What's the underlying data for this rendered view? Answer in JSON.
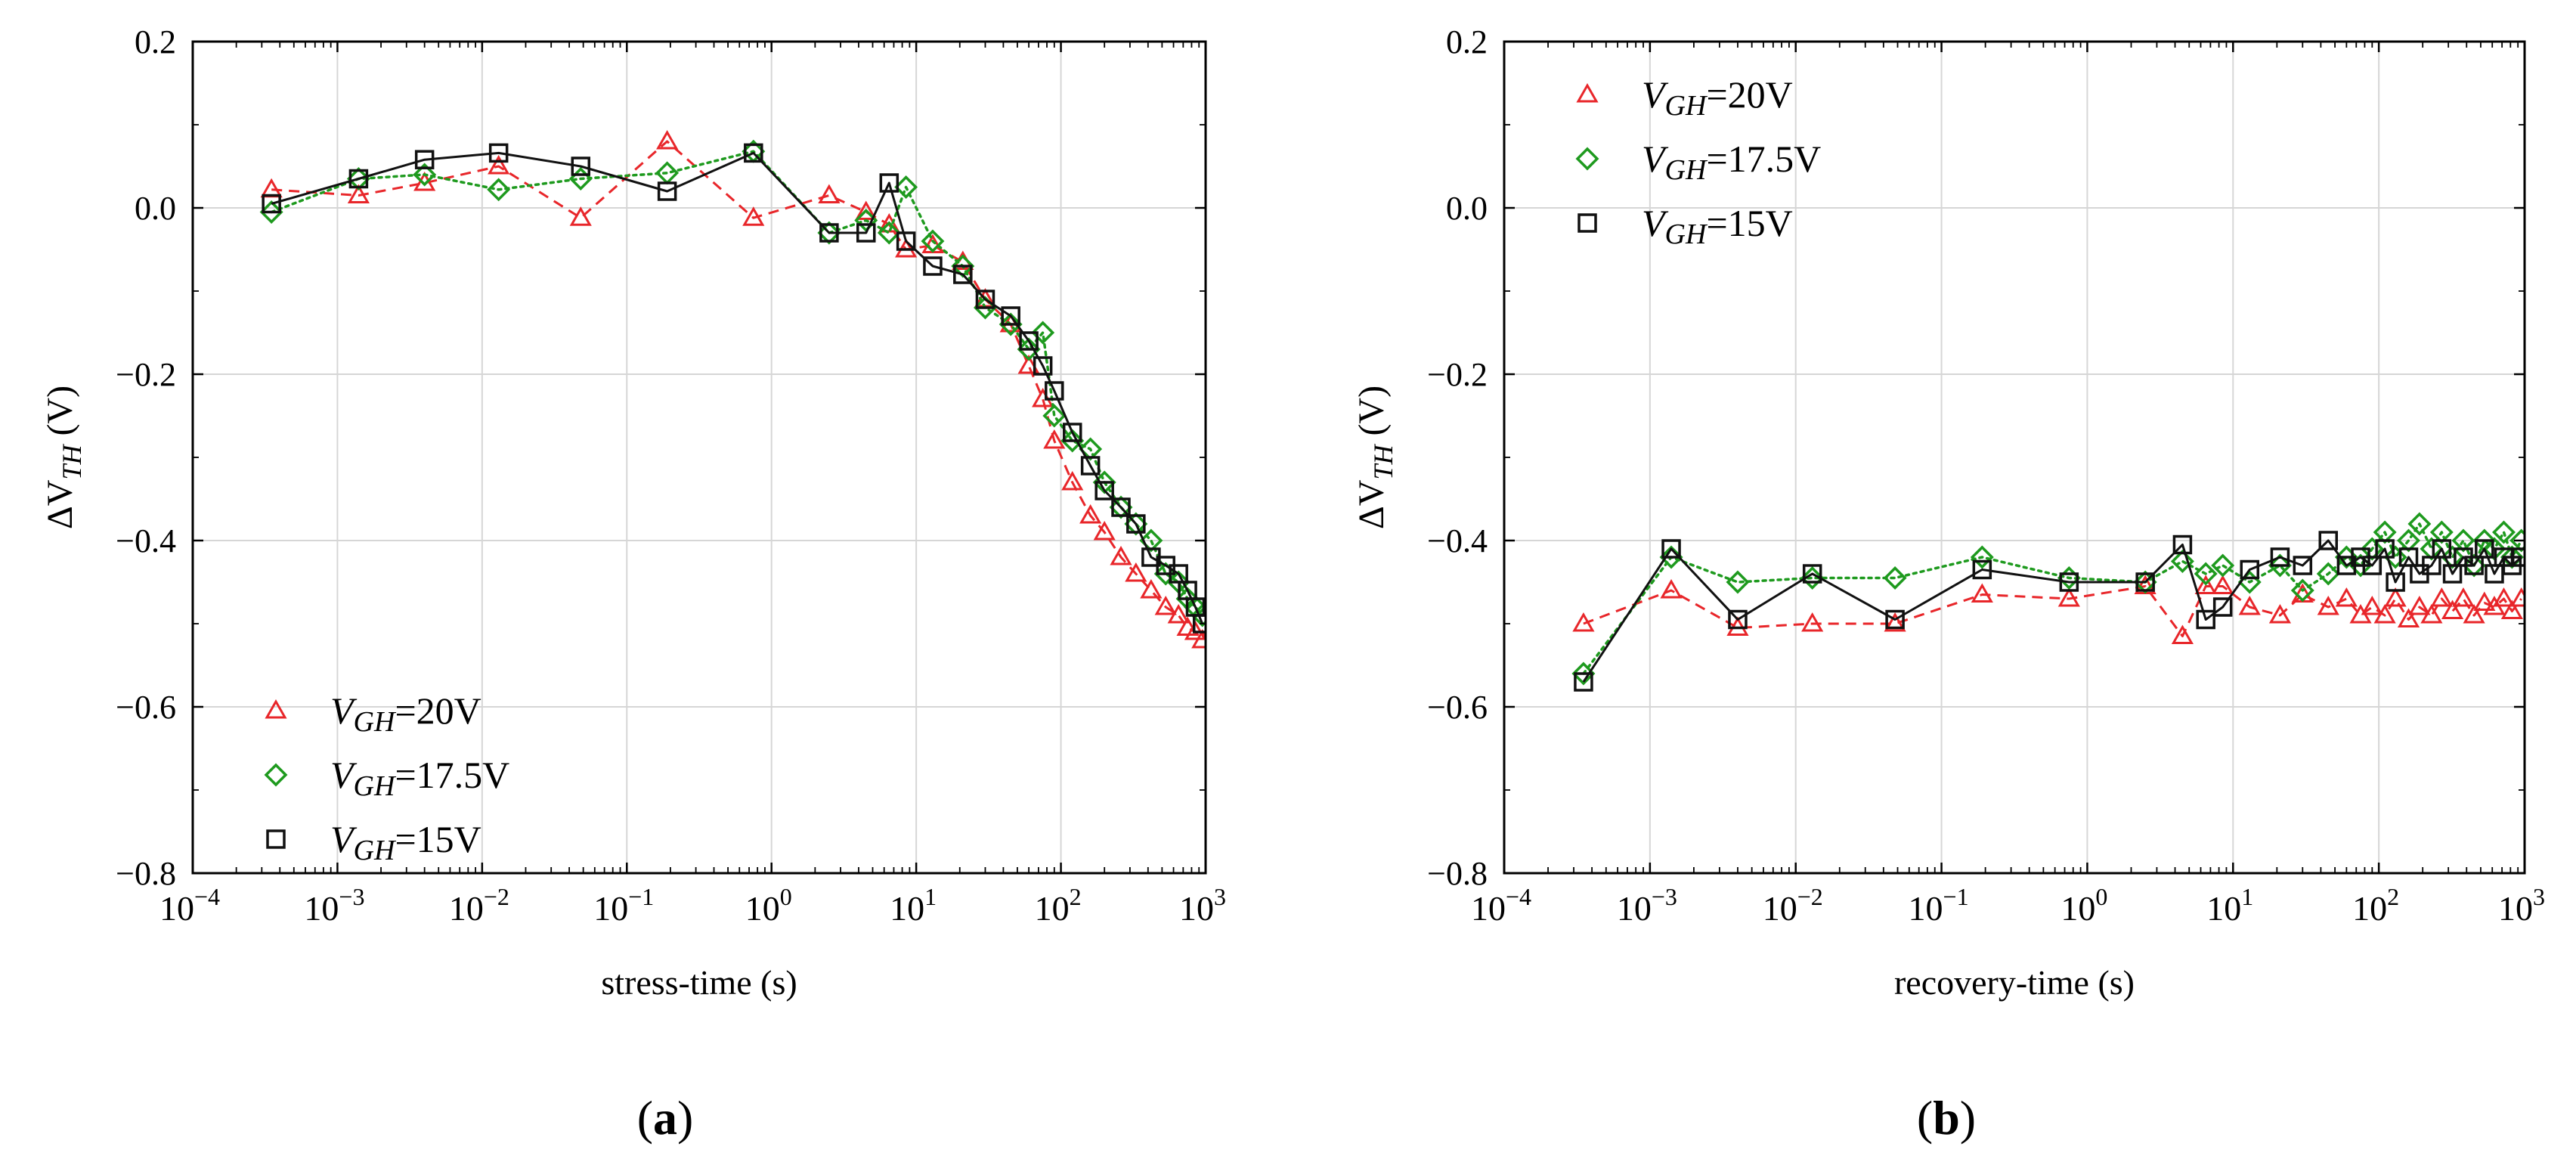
{
  "figure": {
    "panels": [
      {
        "label": "(a)"
      },
      {
        "label": "(b)"
      }
    ]
  },
  "chart_data": [
    {
      "type": "scatter",
      "panel_label": "(a)",
      "xlabel": "stress-time (s)",
      "ylabel": "ΔV_TH (V)",
      "ylabel_parts": {
        "prefix": "ΔV",
        "subscript": "TH",
        "suffix": " (V)"
      },
      "x_scale": "log",
      "xlim": [
        0.0001,
        1000
      ],
      "ylim": [
        -0.8,
        0.2
      ],
      "x_ticks": [
        {
          "value": 0.0001,
          "base": "10",
          "exp": "−4"
        },
        {
          "value": 0.001,
          "base": "10",
          "exp": "−3"
        },
        {
          "value": 0.01,
          "base": "10",
          "exp": "−2"
        },
        {
          "value": 0.1,
          "base": "10",
          "exp": "−1"
        },
        {
          "value": 1,
          "base": "10",
          "exp": "0"
        },
        {
          "value": 10,
          "base": "10",
          "exp": "1"
        },
        {
          "value": 100,
          "base": "10",
          "exp": "2"
        },
        {
          "value": 1000,
          "base": "10",
          "exp": "3"
        }
      ],
      "y_ticks": [
        {
          "value": 0.2,
          "label": "0.2"
        },
        {
          "value": 0.0,
          "label": "0.0"
        },
        {
          "value": -0.2,
          "label": "−0.2"
        },
        {
          "value": -0.4,
          "label": "−0.4"
        },
        {
          "value": -0.6,
          "label": "−0.6"
        },
        {
          "value": -0.8,
          "label": "−0.8"
        }
      ],
      "grid": true,
      "legend_position": "bottom-left",
      "series": [
        {
          "name": "V_GH=20V",
          "name_main": "V",
          "name_sub": "GH",
          "name_rest": "=20V",
          "color": "#e8262a",
          "marker": "triangle",
          "line": "dashed",
          "x": [
            0.00035,
            0.0014,
            0.004,
            0.013,
            0.048,
            0.19,
            0.75,
            2.5,
            4.5,
            6.5,
            8.5,
            13,
            21,
            30,
            45,
            60,
            75,
            90,
            120,
            160,
            200,
            260,
            330,
            420,
            530,
            650,
            750,
            850,
            950
          ],
          "y": [
            0.022,
            0.015,
            0.03,
            0.05,
            -0.012,
            0.08,
            -0.012,
            0.015,
            -0.005,
            -0.02,
            -0.05,
            -0.045,
            -0.065,
            -0.11,
            -0.14,
            -0.19,
            -0.23,
            -0.28,
            -0.33,
            -0.37,
            -0.39,
            -0.42,
            -0.44,
            -0.46,
            -0.48,
            -0.49,
            -0.505,
            -0.51,
            -0.52
          ]
        },
        {
          "name": "V_GH=17.5V",
          "name_main": "V",
          "name_sub": "GH",
          "name_rest": "=17.5V",
          "color": "#1e9a1e",
          "marker": "diamond",
          "line": "dotted",
          "x": [
            0.00035,
            0.0014,
            0.004,
            0.013,
            0.048,
            0.19,
            0.75,
            2.5,
            4.5,
            6.5,
            8.5,
            13,
            21,
            30,
            45,
            60,
            75,
            90,
            120,
            160,
            200,
            260,
            330,
            420,
            530,
            650,
            750,
            850,
            950
          ],
          "y": [
            -0.005,
            0.035,
            0.04,
            0.022,
            0.035,
            0.042,
            0.068,
            -0.03,
            -0.015,
            -0.03,
            0.025,
            -0.04,
            -0.07,
            -0.12,
            -0.14,
            -0.17,
            -0.15,
            -0.25,
            -0.28,
            -0.29,
            -0.33,
            -0.36,
            -0.38,
            -0.4,
            -0.44,
            -0.45,
            -0.47,
            -0.48,
            -0.49
          ]
        },
        {
          "name": "V_GH=15V",
          "name_main": "V",
          "name_sub": "GH",
          "name_rest": "=15V",
          "color": "#111111",
          "marker": "square",
          "line": "solid",
          "x": [
            0.00035,
            0.0014,
            0.004,
            0.013,
            0.048,
            0.19,
            0.75,
            2.5,
            4.5,
            6.5,
            8.5,
            13,
            21,
            30,
            45,
            60,
            75,
            90,
            120,
            160,
            200,
            260,
            330,
            420,
            530,
            650,
            750,
            850,
            950
          ],
          "y": [
            0.005,
            0.035,
            0.058,
            0.066,
            0.05,
            0.02,
            0.066,
            -0.03,
            -0.03,
            0.03,
            -0.04,
            -0.07,
            -0.08,
            -0.11,
            -0.13,
            -0.16,
            -0.19,
            -0.22,
            -0.27,
            -0.31,
            -0.34,
            -0.36,
            -0.38,
            -0.42,
            -0.43,
            -0.44,
            -0.46,
            -0.48,
            -0.5
          ]
        }
      ]
    },
    {
      "type": "scatter",
      "panel_label": "(b)",
      "xlabel": "recovery-time (s)",
      "ylabel": "ΔV_TH (V)",
      "ylabel_parts": {
        "prefix": "ΔV",
        "subscript": "TH",
        "suffix": " (V)"
      },
      "x_scale": "log",
      "xlim": [
        0.0001,
        1000
      ],
      "ylim": [
        -0.8,
        0.2
      ],
      "x_ticks": [
        {
          "value": 0.0001,
          "base": "10",
          "exp": "−4"
        },
        {
          "value": 0.001,
          "base": "10",
          "exp": "−3"
        },
        {
          "value": 0.01,
          "base": "10",
          "exp": "−2"
        },
        {
          "value": 0.1,
          "base": "10",
          "exp": "−1"
        },
        {
          "value": 1,
          "base": "10",
          "exp": "0"
        },
        {
          "value": 10,
          "base": "10",
          "exp": "1"
        },
        {
          "value": 100,
          "base": "10",
          "exp": "2"
        },
        {
          "value": 1000,
          "base": "10",
          "exp": "3"
        }
      ],
      "y_ticks": [
        {
          "value": 0.2,
          "label": "0.2"
        },
        {
          "value": 0.0,
          "label": "0.0"
        },
        {
          "value": -0.2,
          "label": "−0.2"
        },
        {
          "value": -0.4,
          "label": "−0.4"
        },
        {
          "value": -0.6,
          "label": "−0.6"
        },
        {
          "value": -0.8,
          "label": "−0.8"
        }
      ],
      "grid": true,
      "legend_position": "top-left",
      "series": [
        {
          "name": "V_GH=20V",
          "name_main": "V",
          "name_sub": "GH",
          "name_rest": "=20V",
          "color": "#e8262a",
          "marker": "triangle",
          "line": "dashed",
          "x": [
            0.00035,
            0.0014,
            0.004,
            0.013,
            0.048,
            0.19,
            0.75,
            2.5,
            4.5,
            6.5,
            8.5,
            13,
            21,
            30,
            45,
            60,
            75,
            90,
            110,
            130,
            160,
            190,
            230,
            270,
            320,
            380,
            450,
            530,
            620,
            720,
            820,
            950
          ],
          "y": [
            -0.5,
            -0.46,
            -0.505,
            -0.5,
            -0.5,
            -0.465,
            -0.47,
            -0.455,
            -0.515,
            -0.455,
            -0.455,
            -0.48,
            -0.49,
            -0.465,
            -0.48,
            -0.47,
            -0.49,
            -0.48,
            -0.49,
            -0.47,
            -0.495,
            -0.48,
            -0.49,
            -0.47,
            -0.485,
            -0.47,
            -0.49,
            -0.475,
            -0.48,
            -0.47,
            -0.485,
            -0.47
          ]
        },
        {
          "name": "V_GH=17.5V",
          "name_main": "V",
          "name_sub": "GH",
          "name_rest": "=17.5V",
          "color": "#1e9a1e",
          "marker": "diamond",
          "line": "dotted",
          "x": [
            0.00035,
            0.0014,
            0.004,
            0.013,
            0.048,
            0.19,
            0.75,
            2.5,
            4.5,
            6.5,
            8.5,
            13,
            21,
            30,
            45,
            60,
            75,
            90,
            110,
            130,
            160,
            190,
            230,
            270,
            320,
            380,
            450,
            530,
            620,
            720,
            820,
            950
          ],
          "y": [
            -0.56,
            -0.42,
            -0.45,
            -0.445,
            -0.445,
            -0.42,
            -0.445,
            -0.45,
            -0.425,
            -0.44,
            -0.43,
            -0.45,
            -0.43,
            -0.46,
            -0.44,
            -0.42,
            -0.43,
            -0.41,
            -0.39,
            -0.42,
            -0.4,
            -0.38,
            -0.41,
            -0.39,
            -0.42,
            -0.4,
            -0.43,
            -0.4,
            -0.41,
            -0.39,
            -0.42,
            -0.4
          ]
        },
        {
          "name": "V_GH=15V",
          "name_main": "V",
          "name_sub": "GH",
          "name_rest": "=15V",
          "color": "#111111",
          "marker": "square",
          "line": "solid",
          "x": [
            0.00035,
            0.0014,
            0.004,
            0.013,
            0.048,
            0.19,
            0.75,
            2.5,
            4.5,
            6.5,
            8.5,
            13,
            21,
            30,
            45,
            60,
            75,
            90,
            110,
            130,
            160,
            190,
            230,
            270,
            320,
            380,
            450,
            530,
            620,
            720,
            820,
            950
          ],
          "y": [
            -0.57,
            -0.41,
            -0.495,
            -0.44,
            -0.495,
            -0.435,
            -0.45,
            -0.45,
            -0.405,
            -0.495,
            -0.48,
            -0.435,
            -0.42,
            -0.43,
            -0.4,
            -0.43,
            -0.42,
            -0.43,
            -0.41,
            -0.45,
            -0.42,
            -0.44,
            -0.43,
            -0.41,
            -0.44,
            -0.42,
            -0.43,
            -0.41,
            -0.44,
            -0.42,
            -0.43,
            -0.42
          ]
        }
      ]
    }
  ]
}
